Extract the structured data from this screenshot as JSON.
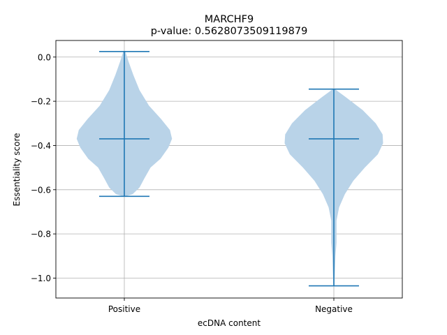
{
  "chart_data": {
    "type": "violin",
    "title": "MARCHF9",
    "subtitle": "p-value: 0.5628073509119879",
    "xlabel": "ecDNA content",
    "ylabel": "Essentiality score",
    "categories": [
      "Positive",
      "Negative"
    ],
    "ylim": [
      -1.09,
      0.075
    ],
    "yticks": [
      0.0,
      -0.2,
      -0.4,
      -0.6,
      -0.8,
      -1.0
    ],
    "ytick_labels": [
      "0.0",
      "−0.2",
      "−0.4",
      "−0.6",
      "−0.8",
      "−1.0"
    ],
    "grid": true,
    "colors": {
      "violin_fill": "#b9d3e8",
      "stats_line": "#1f77b4",
      "grid": "#b0b0b0"
    },
    "violins": [
      {
        "category": "Positive",
        "max": 0.025,
        "median": -0.37,
        "min": -0.63,
        "density": [
          [
            0.025,
            0.02
          ],
          [
            -0.02,
            0.08
          ],
          [
            -0.08,
            0.17
          ],
          [
            -0.15,
            0.29
          ],
          [
            -0.22,
            0.47
          ],
          [
            -0.28,
            0.7
          ],
          [
            -0.33,
            0.87
          ],
          [
            -0.37,
            0.91
          ],
          [
            -0.41,
            0.84
          ],
          [
            -0.46,
            0.69
          ],
          [
            -0.5,
            0.5
          ],
          [
            -0.55,
            0.38
          ],
          [
            -0.59,
            0.29
          ],
          [
            -0.62,
            0.16
          ],
          [
            -0.63,
            0.02
          ]
        ]
      },
      {
        "category": "Negative",
        "max": -0.145,
        "median": -0.37,
        "min": -1.035,
        "density": [
          [
            -0.145,
            0.02
          ],
          [
            -0.18,
            0.22
          ],
          [
            -0.24,
            0.55
          ],
          [
            -0.3,
            0.8
          ],
          [
            -0.35,
            0.93
          ],
          [
            -0.39,
            0.94
          ],
          [
            -0.44,
            0.84
          ],
          [
            -0.5,
            0.59
          ],
          [
            -0.56,
            0.37
          ],
          [
            -0.62,
            0.21
          ],
          [
            -0.68,
            0.1
          ],
          [
            -0.74,
            0.05
          ],
          [
            -0.78,
            0.05
          ],
          [
            -0.84,
            0.05
          ],
          [
            -0.9,
            0.03
          ],
          [
            -0.97,
            0.02
          ],
          [
            -1.035,
            0.01
          ]
        ]
      }
    ]
  }
}
